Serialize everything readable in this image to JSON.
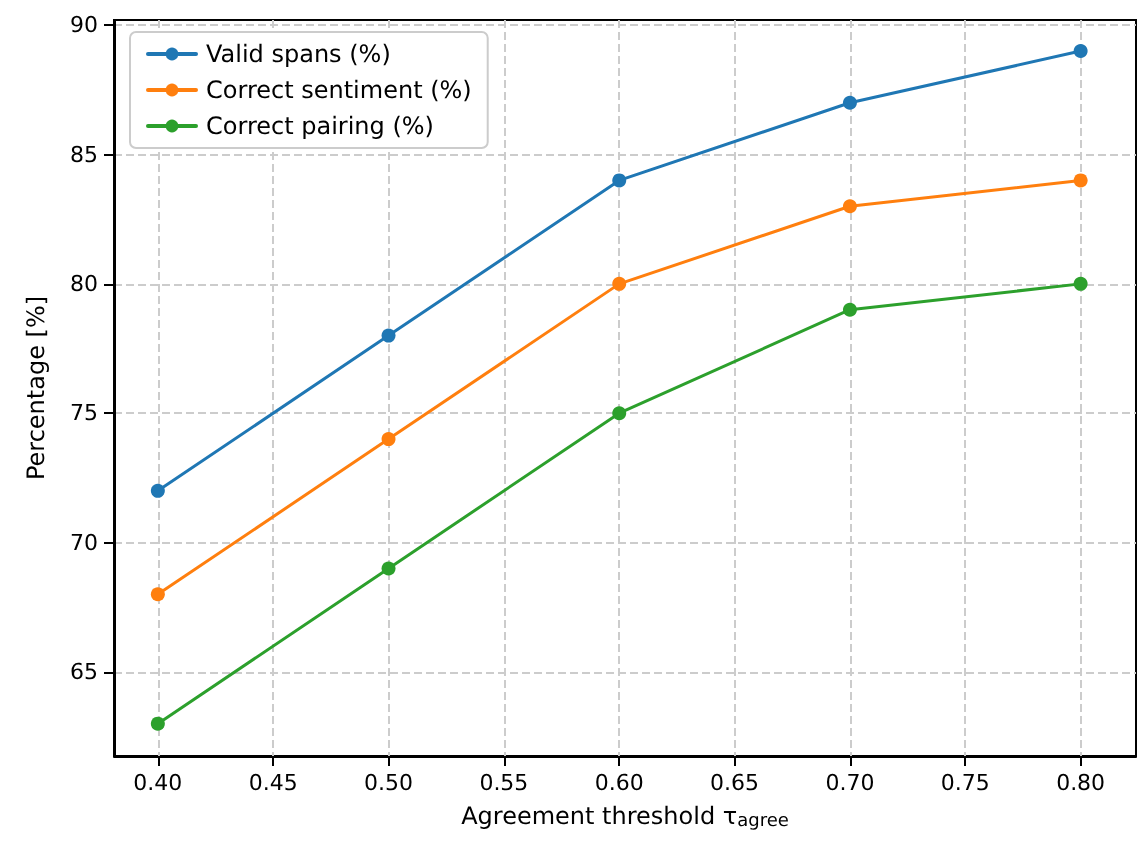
{
  "chart_data": {
    "type": "line",
    "xlabel": "Agreement threshold τ$_{agree}$",
    "ylabel": "Percentage [%]",
    "x": [
      0.4,
      0.5,
      0.6,
      0.7,
      0.8
    ],
    "series": [
      {
        "name": "Valid spans (%)",
        "color": "#1f77b4",
        "values": [
          72,
          78,
          84,
          87,
          89
        ]
      },
      {
        "name": "Correct sentiment (%)",
        "color": "#ff7f0e",
        "values": [
          68,
          74,
          80,
          83,
          84
        ]
      },
      {
        "name": "Correct pairing (%)",
        "color": "#2ca02c",
        "values": [
          63,
          69,
          75,
          79,
          80
        ]
      }
    ],
    "xlim": [
      0.381,
      0.824
    ],
    "ylim": [
      61.75,
      90.2
    ],
    "xticks": [
      {
        "value": 0.4,
        "label": "0.40"
      },
      {
        "value": 0.45,
        "label": "0.45"
      },
      {
        "value": 0.5,
        "label": "0.50"
      },
      {
        "value": 0.55,
        "label": "0.55"
      },
      {
        "value": 0.6,
        "label": "0.60"
      },
      {
        "value": 0.65,
        "label": "0.65"
      },
      {
        "value": 0.7,
        "label": "0.70"
      },
      {
        "value": 0.75,
        "label": "0.75"
      },
      {
        "value": 0.8,
        "label": "0.80"
      }
    ],
    "yticks": [
      65,
      70,
      75,
      80,
      85,
      90
    ],
    "grid": true,
    "legend": "top left",
    "marker": "circle",
    "line_style": "solid"
  }
}
